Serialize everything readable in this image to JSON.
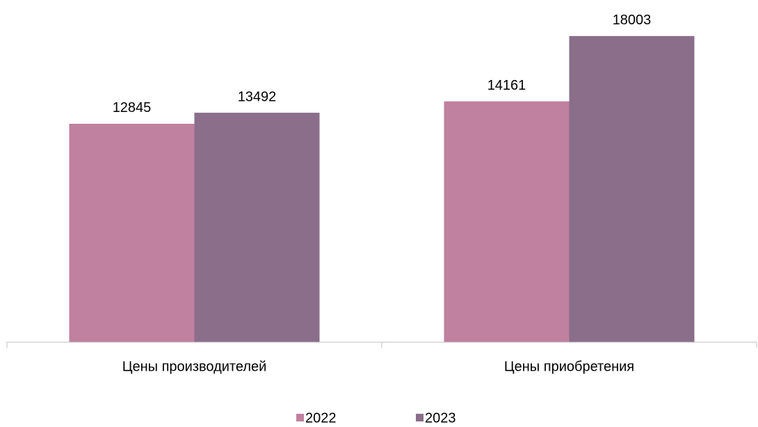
{
  "chart_data": {
    "type": "bar",
    "categories": [
      "Цены производителей",
      "Цены приобретения"
    ],
    "series": [
      {
        "name": "2022",
        "color": "#c0809f",
        "values": [
          12845,
          14161
        ]
      },
      {
        "name": "2023",
        "color": "#8a6e8a",
        "values": [
          13492,
          18003
        ]
      }
    ],
    "ylim": [
      0,
      20000
    ],
    "legend": "bottom"
  }
}
